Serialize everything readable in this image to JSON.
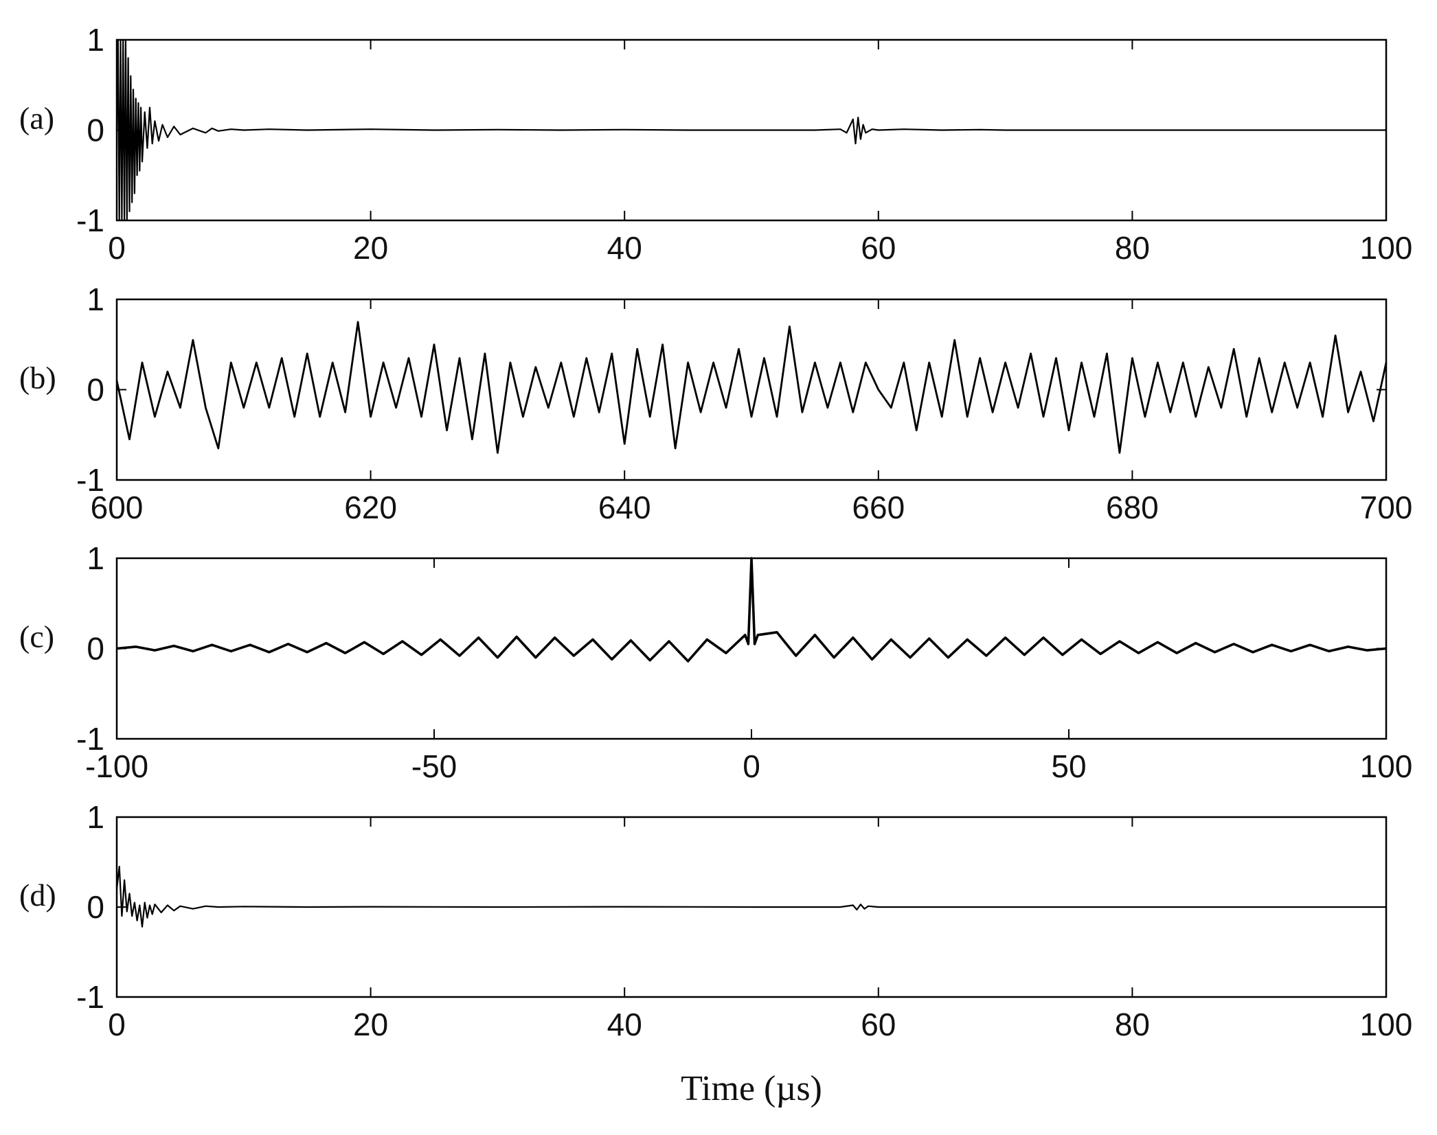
{
  "chart_data": [
    {
      "type": "line",
      "panel_label": "(a)",
      "xlim": [
        0,
        100
      ],
      "ylim": [
        -1,
        1
      ],
      "xticks": [
        0,
        20,
        40,
        60,
        80,
        100
      ],
      "yticks": [
        -1,
        0,
        1
      ],
      "xtick_labels": [
        "0",
        "20",
        "40",
        "60",
        "80",
        "100"
      ],
      "ytick_labels": [
        "-1",
        "0",
        "1"
      ],
      "xlabel": "",
      "grid": false,
      "series": [
        {
          "x": [
            0,
            0.1,
            0.2,
            0.3,
            0.4,
            0.5,
            0.6,
            0.7,
            0.8,
            0.9,
            1.0,
            1.1,
            1.2,
            1.3,
            1.4,
            1.5,
            1.6,
            1.7,
            1.8,
            1.9,
            2.0,
            2.2,
            2.4,
            2.6,
            2.8,
            3.0,
            3.3,
            3.6,
            4.0,
            4.5,
            5,
            6,
            7,
            7.5,
            8,
            9,
            10,
            12,
            15,
            20,
            25,
            30,
            35,
            40,
            45,
            50,
            55,
            57,
            57.5,
            58,
            58.2,
            58.4,
            58.6,
            58.8,
            59,
            59.5,
            60,
            62,
            65,
            68,
            70,
            75,
            80,
            85,
            90,
            95,
            100
          ],
          "y": [
            0,
            1,
            -1,
            1,
            -1,
            1,
            -1,
            1,
            -1,
            0.8,
            -0.9,
            0.6,
            -0.8,
            0.45,
            -0.7,
            0.35,
            -0.5,
            0.3,
            -0.45,
            0.25,
            -0.35,
            0.2,
            -0.2,
            0.25,
            -0.15,
            0.1,
            -0.12,
            0.06,
            -0.08,
            0.04,
            -0.05,
            0.02,
            -0.03,
            0.02,
            -0.01,
            0.01,
            0.0,
            0.01,
            0.0,
            0.01,
            0.0,
            0.005,
            0.0,
            0.005,
            0.0,
            0.0,
            0.0,
            0.01,
            -0.03,
            0.12,
            -0.15,
            0.14,
            -0.1,
            0.06,
            -0.03,
            0.01,
            0.0,
            0.01,
            0.0,
            0.005,
            0.0,
            0.0,
            0.0,
            0.0,
            0.0,
            0.0,
            0.0
          ]
        }
      ]
    },
    {
      "type": "line",
      "panel_label": "(b)",
      "xlim": [
        600,
        700
      ],
      "ylim": [
        -1,
        1
      ],
      "xticks": [
        600,
        620,
        640,
        660,
        680,
        700
      ],
      "yticks": [
        -1,
        0,
        1
      ],
      "xtick_labels": [
        "600",
        "620",
        "640",
        "660",
        "680",
        "700"
      ],
      "ytick_labels": [
        "-1",
        "0",
        "1"
      ],
      "xlabel": "",
      "grid": false,
      "series": [
        {
          "x": [
            600,
            601,
            602,
            603,
            604,
            605,
            606,
            607,
            608,
            609,
            610,
            611,
            612,
            613,
            614,
            615,
            616,
            617,
            618,
            619,
            620,
            621,
            622,
            623,
            624,
            625,
            626,
            627,
            628,
            629,
            630,
            631,
            632,
            633,
            634,
            635,
            636,
            637,
            638,
            639,
            640,
            641,
            642,
            643,
            644,
            645,
            646,
            647,
            648,
            649,
            650,
            651,
            652,
            653,
            654,
            655,
            656,
            657,
            658,
            659,
            660,
            661,
            662,
            663,
            664,
            665,
            666,
            667,
            668,
            669,
            670,
            671,
            672,
            673,
            674,
            675,
            676,
            677,
            678,
            679,
            680,
            681,
            682,
            683,
            684,
            685,
            686,
            687,
            688,
            689,
            690,
            691,
            692,
            693,
            694,
            695,
            696,
            697,
            698,
            699,
            700
          ],
          "y": [
            0.1,
            -0.55,
            0.3,
            -0.3,
            0.2,
            -0.2,
            0.55,
            -0.2,
            -0.65,
            0.3,
            -0.2,
            0.3,
            -0.2,
            0.35,
            -0.3,
            0.4,
            -0.3,
            0.3,
            -0.25,
            0.75,
            -0.3,
            0.3,
            -0.2,
            0.35,
            -0.3,
            0.5,
            -0.45,
            0.35,
            -0.55,
            0.4,
            -0.7,
            0.3,
            -0.3,
            0.25,
            -0.2,
            0.3,
            -0.3,
            0.35,
            -0.25,
            0.4,
            -0.6,
            0.45,
            -0.3,
            0.5,
            -0.65,
            0.3,
            -0.25,
            0.3,
            -0.2,
            0.45,
            -0.3,
            0.35,
            -0.3,
            0.7,
            -0.25,
            0.3,
            -0.2,
            0.3,
            -0.25,
            0.3,
            0.0,
            -0.2,
            0.3,
            -0.45,
            0.3,
            -0.3,
            0.55,
            -0.3,
            0.35,
            -0.25,
            0.3,
            -0.2,
            0.4,
            -0.3,
            0.35,
            -0.45,
            0.3,
            -0.3,
            0.4,
            -0.7,
            0.35,
            -0.3,
            0.3,
            -0.25,
            0.3,
            -0.3,
            0.25,
            -0.2,
            0.45,
            -0.3,
            0.35,
            -0.25,
            0.3,
            -0.2,
            0.3,
            -0.3,
            0.6,
            -0.25,
            0.2,
            -0.35,
            0.3
          ]
        }
      ]
    },
    {
      "type": "line",
      "panel_label": "(c)",
      "xlim": [
        -100,
        100
      ],
      "ylim": [
        -1,
        1
      ],
      "xticks": [
        -100,
        -50,
        0,
        50,
        100
      ],
      "yticks": [
        -1,
        0,
        1
      ],
      "xtick_labels": [
        "-100",
        "-50",
        "0",
        "50",
        "100"
      ],
      "ytick_labels": [
        "-1",
        "0",
        "1"
      ],
      "xlabel": "",
      "grid": false,
      "series": [
        {
          "x": [
            -100,
            -97,
            -94,
            -91,
            -88,
            -85,
            -82,
            -79,
            -76,
            -73,
            -70,
            -67,
            -64,
            -61,
            -58,
            -55,
            -52,
            -49,
            -46,
            -43,
            -40,
            -37,
            -34,
            -31,
            -28,
            -25,
            -22,
            -19,
            -16,
            -13,
            -10,
            -7,
            -4,
            -1,
            -0.5,
            0,
            0.5,
            1,
            4,
            7,
            10,
            13,
            16,
            19,
            22,
            25,
            28,
            31,
            34,
            37,
            40,
            43,
            46,
            49,
            52,
            55,
            58,
            61,
            64,
            67,
            70,
            73,
            76,
            79,
            82,
            85,
            88,
            91,
            94,
            97,
            100
          ],
          "y": [
            0.0,
            0.02,
            -0.02,
            0.03,
            -0.03,
            0.04,
            -0.03,
            0.04,
            -0.04,
            0.05,
            -0.04,
            0.06,
            -0.05,
            0.07,
            -0.06,
            0.08,
            -0.07,
            0.1,
            -0.08,
            0.12,
            -0.1,
            0.13,
            -0.1,
            0.12,
            -0.08,
            0.1,
            -0.12,
            0.09,
            -0.13,
            0.08,
            -0.14,
            0.1,
            -0.05,
            0.15,
            0.05,
            1.0,
            0.05,
            0.15,
            0.18,
            -0.08,
            0.15,
            -0.1,
            0.12,
            -0.12,
            0.1,
            -0.1,
            0.11,
            -0.1,
            0.1,
            -0.08,
            0.12,
            -0.07,
            0.12,
            -0.07,
            0.1,
            -0.06,
            0.08,
            -0.05,
            0.07,
            -0.05,
            0.06,
            -0.04,
            0.05,
            -0.04,
            0.04,
            -0.03,
            0.04,
            -0.03,
            0.02,
            -0.02,
            0.0
          ]
        }
      ]
    },
    {
      "type": "line",
      "panel_label": "(d)",
      "xlim": [
        0,
        100
      ],
      "ylim": [
        -1,
        1
      ],
      "xticks": [
        0,
        20,
        40,
        60,
        80,
        100
      ],
      "yticks": [
        -1,
        0,
        1
      ],
      "xtick_labels": [
        "0",
        "20",
        "40",
        "60",
        "80",
        "100"
      ],
      "ytick_labels": [
        "-1",
        "0",
        "1"
      ],
      "xlabel": "Time (µs)",
      "grid": false,
      "series": [
        {
          "x": [
            0,
            0.2,
            0.4,
            0.6,
            0.8,
            1.0,
            1.2,
            1.4,
            1.6,
            1.8,
            2.0,
            2.2,
            2.4,
            2.6,
            2.8,
            3.0,
            3.5,
            4,
            4.5,
            5,
            6,
            7,
            8,
            10,
            15,
            20,
            30,
            40,
            50,
            57,
            58,
            58.3,
            58.6,
            58.9,
            59.2,
            60,
            70,
            80,
            90,
            100
          ],
          "y": [
            0.2,
            0.45,
            -0.1,
            0.3,
            -0.05,
            0.15,
            -0.1,
            0.05,
            -0.15,
            0.02,
            -0.22,
            0.05,
            -0.12,
            0.02,
            -0.08,
            0.03,
            -0.06,
            0.02,
            -0.04,
            0.01,
            -0.02,
            0.01,
            0.0,
            0.005,
            0.0,
            0.003,
            0.0,
            0.003,
            0.0,
            0.0,
            0.02,
            -0.03,
            0.03,
            -0.02,
            0.01,
            0.0,
            0.0,
            0.0,
            0.0,
            0.0
          ]
        }
      ]
    }
  ]
}
